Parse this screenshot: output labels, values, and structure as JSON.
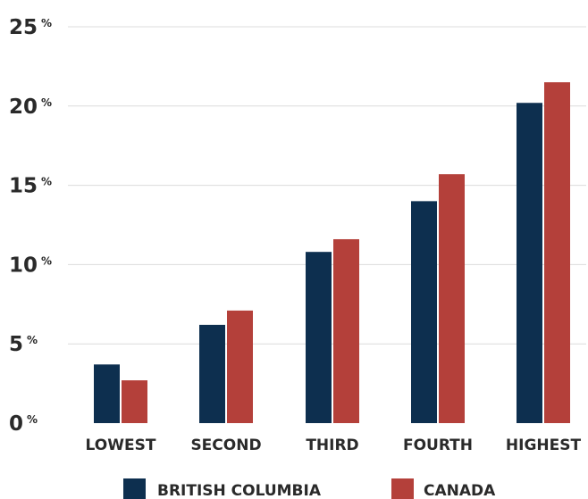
{
  "chart_data": {
    "type": "bar",
    "categories": [
      "LOWEST",
      "SECOND",
      "THIRD",
      "FOURTH",
      "HIGHEST"
    ],
    "series": [
      {
        "name": "BRITISH COLUMBIA",
        "color": "#0d2f4f",
        "values": [
          3.7,
          6.2,
          10.8,
          14.0,
          20.2
        ]
      },
      {
        "name": "CANADA",
        "color": "#b4403a",
        "values": [
          2.7,
          7.1,
          11.6,
          15.7,
          21.5
        ]
      }
    ],
    "title": "",
    "xlabel": "",
    "ylabel": "",
    "ylim": [
      0,
      25
    ],
    "yticks": [
      0,
      5,
      10,
      15,
      20,
      25
    ],
    "tick_suffix": "%",
    "grid": true,
    "legend_position": "bottom"
  }
}
